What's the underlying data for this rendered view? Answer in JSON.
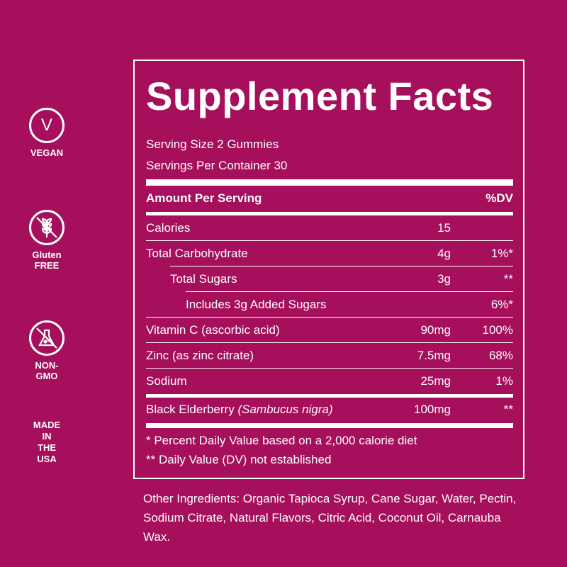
{
  "badges": {
    "vegan": {
      "glyph": "V",
      "label": "VEGAN"
    },
    "gluten_free": {
      "label_line1": "Gluten",
      "label_line2": "FREE"
    },
    "non_gmo": {
      "label": "NON-GMO"
    },
    "made_in_usa": {
      "line1": "MADE IN",
      "line2": "THE USA"
    }
  },
  "facts": {
    "title": "Supplement Facts",
    "serving_size": "Serving Size 2 Gummies",
    "servings_per_container": "Servings Per Container 30",
    "header": {
      "amount": "Amount Per Serving",
      "dv": "%DV"
    },
    "rows": [
      {
        "name": "Calories",
        "amount": "15",
        "dv": ""
      },
      {
        "name": "Total Carbohydrate",
        "amount": "4g",
        "dv": "1%*"
      },
      {
        "name": "Total Sugars",
        "amount": "3g",
        "dv": "**"
      },
      {
        "name": "Includes 3g Added Sugars",
        "amount": "",
        "dv": "6%*"
      },
      {
        "name": "Vitamin C (ascorbic acid)",
        "amount": "90mg",
        "dv": "100%"
      },
      {
        "name": "Zinc (as zinc citrate)",
        "amount": "7.5mg",
        "dv": "68%"
      },
      {
        "name": "Sodium",
        "amount": "25mg",
        "dv": "1%"
      },
      {
        "name": "Black Elderberry",
        "name_italic": "(Sambucus nigra)",
        "amount": "100mg",
        "dv": "**"
      }
    ],
    "footnote_1": "*   Percent Daily Value based on a 2,000 calorie diet",
    "footnote_2": "** Daily Value (DV) not established"
  },
  "other_ingredients": "Other Ingredients: Organic Tapioca Syrup, Cane Sugar, Water, Pectin, Sodium Citrate, Natural Flavors, Citric Acid, Coconut Oil, Carnauba Wax.",
  "colors": {
    "background": "#a50f5c",
    "foreground": "#ffffff"
  }
}
